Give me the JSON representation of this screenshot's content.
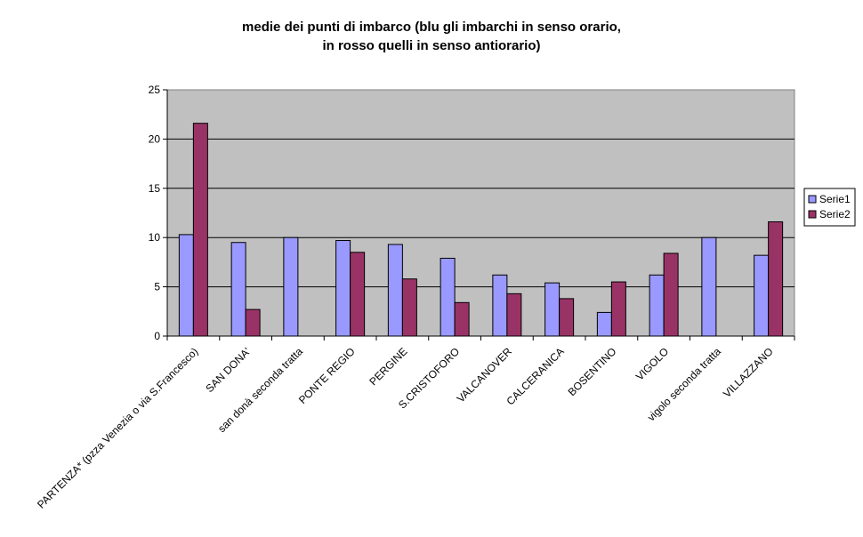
{
  "chart_data": {
    "type": "bar",
    "title_lines": [
      "medie dei punti di imbarco (blu gli imbarchi in senso orario,",
      "in rosso quelli  in senso antiorario)"
    ],
    "categories": [
      "PARTENZA* (pzza Venezia  o via S.Francesco)",
      "SAN DONA'",
      "san donà seconda tratta",
      "PONTE REGIO",
      "PERGINE",
      "S.CRISTOFORO",
      "VALCANOVER",
      "CALCERANICA",
      "BOSENTINO",
      "VIGOLO",
      "vigolo seconda tratta",
      "VILLAZZANO"
    ],
    "series": [
      {
        "name": "Serie1",
        "color": "#9999ff",
        "values": [
          10.3,
          9.5,
          10.0,
          9.7,
          9.3,
          7.9,
          6.2,
          5.4,
          2.4,
          6.2,
          10.0,
          8.2
        ]
      },
      {
        "name": "Serie2",
        "color": "#993366",
        "values": [
          21.6,
          2.7,
          null,
          8.5,
          5.8,
          3.4,
          4.3,
          3.8,
          5.5,
          8.4,
          null,
          11.6
        ]
      }
    ],
    "ylim": [
      0,
      25
    ],
    "yticks": [
      0,
      5,
      10,
      15,
      20,
      25
    ],
    "xlabel": "",
    "ylabel": "",
    "grid": true,
    "legend_position": "right",
    "plot_background": "#c0c0c0"
  }
}
